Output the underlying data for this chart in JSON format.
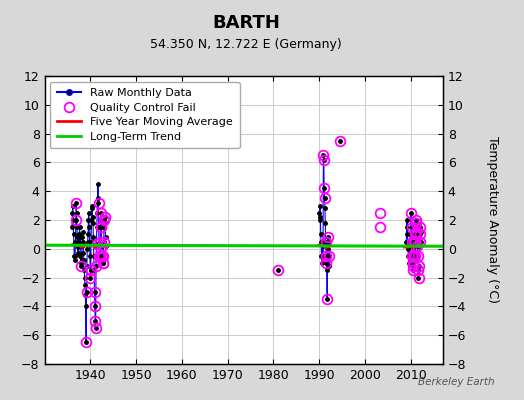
{
  "title": "BARTH",
  "subtitle": "54.350 N, 12.722 E (Germany)",
  "ylabel": "Temperature Anomaly (°C)",
  "watermark": "Berkeley Earth",
  "xlim": [
    1930,
    2017
  ],
  "ylim": [
    -8,
    12
  ],
  "yticks": [
    -8,
    -6,
    -4,
    -2,
    0,
    2,
    4,
    6,
    8,
    10,
    12
  ],
  "xticks": [
    1940,
    1950,
    1960,
    1970,
    1980,
    1990,
    2000,
    2010
  ],
  "bg_color": "#d8d8d8",
  "plot_bg_color": "#ffffff",
  "grid_color": "#cccccc",
  "line_color": "#0000ff",
  "dot_color": "#000000",
  "qc_color": "#ff00ff",
  "avg_color": "#ff0000",
  "trend_color": "#00cc00",
  "seg1_x": [
    1936.0,
    1936.083,
    1936.167,
    1936.25,
    1936.333,
    1936.417,
    1936.5,
    1936.583,
    1936.667,
    1936.75,
    1936.833,
    1936.917,
    1937.0,
    1937.083,
    1937.167,
    1937.25,
    1937.333,
    1937.417,
    1937.5,
    1937.583,
    1937.667,
    1937.75,
    1937.833,
    1937.917,
    1938.0,
    1938.083,
    1938.167,
    1938.25,
    1938.333,
    1938.417,
    1938.5,
    1938.583,
    1938.667,
    1938.75,
    1938.833,
    1938.917,
    1939.0,
    1939.083,
    1939.167,
    1939.25,
    1939.333,
    1939.417,
    1939.5,
    1939.583,
    1939.667,
    1939.75,
    1939.833,
    1939.917,
    1940.0,
    1940.083,
    1940.167,
    1940.25,
    1940.333,
    1940.417,
    1940.5,
    1940.583,
    1940.667,
    1940.75,
    1940.833,
    1940.917,
    1941.0,
    1941.083,
    1941.167,
    1941.25,
    1941.333,
    1941.417,
    1941.5,
    1941.583,
    1941.667,
    1941.75,
    1941.833,
    1941.917,
    1942.0,
    1942.083,
    1942.167,
    1942.25,
    1942.333,
    1942.417,
    1942.5,
    1942.583,
    1942.667,
    1942.75,
    1942.833,
    1942.917,
    1943.0,
    1943.083,
    1943.167,
    1943.25,
    1943.333,
    1943.417
  ],
  "seg1_y": [
    1.5,
    2.5,
    3.0,
    2.0,
    1.0,
    0.3,
    -0.5,
    -0.8,
    -0.5,
    0.5,
    2.0,
    3.2,
    2.5,
    1.5,
    0.8,
    0.2,
    -0.3,
    0.1,
    0.5,
    1.0,
    1.5,
    0.8,
    -0.5,
    -1.2,
    -1.0,
    -0.8,
    0.2,
    0.8,
    1.2,
    0.5,
    -0.3,
    -0.8,
    -1.5,
    -2.0,
    -2.5,
    -3.2,
    -4.0,
    -6.5,
    -3.0,
    -1.2,
    0.0,
    0.5,
    1.0,
    2.0,
    2.5,
    1.5,
    0.3,
    -0.5,
    -2.0,
    -1.5,
    0.5,
    2.0,
    3.0,
    2.8,
    2.2,
    1.8,
    0.8,
    -0.5,
    -1.5,
    -3.0,
    -4.0,
    -5.0,
    -5.5,
    -1.2,
    0.3,
    1.5,
    2.5,
    3.5,
    4.5,
    3.2,
    1.5,
    0.3,
    -0.5,
    -0.5,
    0.5,
    1.5,
    2.5,
    1.5,
    0.2,
    -0.5,
    -1.0,
    -1.0,
    -0.5,
    0.5,
    1.5,
    2.0,
    2.2,
    1.8,
    0.8,
    0.2
  ],
  "seg2_x": [
    1990.0,
    1990.083,
    1990.167,
    1990.25,
    1990.333,
    1990.417,
    1990.5,
    1990.583,
    1990.667,
    1990.75,
    1990.833,
    1990.917,
    1991.0,
    1991.083,
    1991.167,
    1991.25,
    1991.333,
    1991.417,
    1991.5,
    1991.583,
    1991.667,
    1991.75,
    1991.833,
    1991.917,
    1992.0,
    1992.083,
    1992.167,
    1992.25
  ],
  "seg2_y": [
    2.5,
    2.0,
    3.0,
    2.2,
    1.0,
    0.5,
    -0.5,
    -1.0,
    0.5,
    0.2,
    -0.5,
    6.5,
    6.2,
    4.2,
    3.5,
    2.8,
    1.8,
    0.5,
    -0.5,
    -1.0,
    -1.5,
    -3.5,
    0.0,
    0.5,
    0.8,
    -0.5,
    -1.2,
    0.5
  ],
  "seg3_x": [
    2009.0,
    2009.083,
    2009.167,
    2009.25,
    2009.333,
    2009.417,
    2009.5,
    2009.583,
    2009.667,
    2009.75,
    2009.833,
    2009.917,
    2010.0,
    2010.083,
    2010.167,
    2010.25,
    2010.333,
    2010.417,
    2010.5,
    2010.583,
    2010.667,
    2010.75,
    2010.833,
    2010.917,
    2011.0,
    2011.083,
    2011.167,
    2011.25,
    2011.333,
    2011.417,
    2011.5,
    2011.583,
    2011.667,
    2011.75,
    2011.833,
    2011.917,
    2012.0,
    2012.083,
    2012.167,
    2012.25
  ],
  "seg3_y": [
    0.5,
    1.0,
    2.0,
    1.5,
    0.5,
    0.0,
    -0.5,
    -1.0,
    -0.5,
    0.2,
    0.5,
    1.0,
    0.5,
    2.5,
    1.5,
    0.5,
    -0.5,
    -1.0,
    -1.5,
    -1.2,
    -0.5,
    0.5,
    1.0,
    -0.5,
    0.5,
    1.2,
    2.0,
    1.8,
    0.8,
    0.2,
    -0.5,
    -1.5,
    -2.0,
    -1.2,
    0.2,
    0.5,
    1.0,
    1.5,
    1.2,
    0.5
  ],
  "iso_x": [
    1981.0
  ],
  "iso_y": [
    -1.5
  ],
  "iso2_x": [
    1994.5
  ],
  "iso2_y": [
    7.5
  ],
  "qc_x": [
    1936.833,
    1936.917,
    1937.917,
    1939.083,
    1939.167,
    1940.0,
    1940.083,
    1940.917,
    1941.0,
    1941.083,
    1941.167,
    1941.333,
    1941.417,
    1941.833,
    1942.0,
    1942.083,
    1942.167,
    1942.25,
    1942.333,
    1942.417,
    1942.5,
    1942.583,
    1942.667,
    1942.75,
    1942.833,
    1942.917,
    1943.083,
    1943.167,
    1981.0,
    1990.917,
    1991.0,
    1991.083,
    1991.167,
    1991.417,
    1991.5,
    1991.583,
    1991.75,
    1992.0,
    1992.083,
    1994.5,
    2003.25,
    2003.333,
    2010.083,
    2010.167,
    2010.25,
    2010.333,
    2010.417,
    2010.5,
    2010.583,
    2010.667,
    2010.75,
    2010.833,
    2010.917,
    2011.0,
    2011.083,
    2011.167,
    2011.25,
    2011.417,
    2011.583,
    2011.667,
    2011.75,
    2011.833,
    2011.917,
    2012.0,
    2012.083
  ],
  "qc_y": [
    2.0,
    3.2,
    -1.2,
    -6.5,
    -3.0,
    -2.0,
    -1.5,
    -3.0,
    -4.0,
    -5.0,
    -5.5,
    -1.2,
    0.3,
    3.2,
    -0.5,
    -0.5,
    0.5,
    1.5,
    2.5,
    1.5,
    0.2,
    -0.5,
    -1.0,
    -1.0,
    -0.5,
    0.5,
    2.0,
    2.2,
    -1.5,
    6.5,
    6.2,
    4.2,
    3.5,
    0.5,
    -0.5,
    -1.0,
    -3.5,
    0.8,
    -0.5,
    7.5,
    2.5,
    1.5,
    2.5,
    1.5,
    0.5,
    -0.5,
    -1.0,
    -1.5,
    -1.2,
    -0.5,
    0.5,
    1.0,
    -0.5,
    0.5,
    1.2,
    2.0,
    1.8,
    0.2,
    -0.5,
    -1.5,
    -2.0,
    -1.2,
    0.5,
    1.0,
    1.5
  ],
  "avg_x1": [
    1936.0,
    1936.5,
    1937.0,
    1937.5,
    1938.0,
    1938.5,
    1939.0,
    1939.5,
    1940.0,
    1940.5,
    1941.0,
    1941.5,
    1942.0,
    1942.5,
    1943.5
  ],
  "avg_y1": [
    0.3,
    0.3,
    0.2,
    0.2,
    0.1,
    0.1,
    0.2,
    0.3,
    0.2,
    0.2,
    0.1,
    0.2,
    0.2,
    0.2,
    0.2
  ],
  "avg_x2": [
    1989.5,
    1990.0,
    1990.5,
    1991.0,
    1991.5,
    1992.0,
    1992.5
  ],
  "avg_y2": [
    0.2,
    0.3,
    0.2,
    0.2,
    0.1,
    0.1,
    0.2
  ],
  "avg_x3": [
    2008.5,
    2009.0,
    2009.5,
    2010.0,
    2010.5,
    2011.0,
    2011.5,
    2012.0,
    2012.5
  ],
  "avg_y3": [
    0.1,
    0.1,
    0.1,
    0.1,
    0.1,
    0.1,
    0.1,
    0.2,
    0.2
  ],
  "trend_x": [
    1930,
    2017
  ],
  "trend_y": [
    0.25,
    0.18
  ]
}
